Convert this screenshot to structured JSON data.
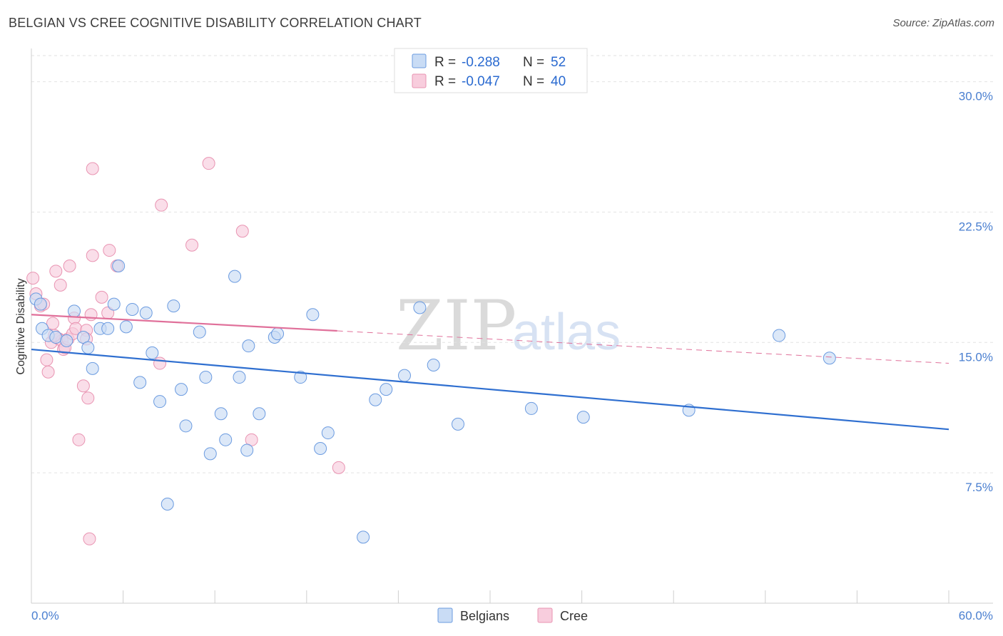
{
  "title": "BELGIAN VS CREE COGNITIVE DISABILITY CORRELATION CHART",
  "source": "Source: ZipAtlas.com",
  "watermark": {
    "zip": "ZIP",
    "atlas": "atlas"
  },
  "colors": {
    "blue": "#4a86d8",
    "blue_fill": "#c9dcf5",
    "pink": "#e97aa0",
    "pink_fill": "#f8cddd",
    "tick": "#4a7fd0"
  },
  "legend": {
    "rows": [
      {
        "r_label": "R =",
        "r_value": "-0.288",
        "n_label": "N =",
        "n_value": "52"
      },
      {
        "r_label": "R =",
        "r_value": "-0.047",
        "n_label": "N =",
        "n_value": "40"
      }
    ]
  },
  "chart_data": {
    "type": "scatter",
    "title": "BELGIAN VS CREE COGNITIVE DISABILITY CORRELATION CHART",
    "xlabel": "",
    "ylabel": "Cognitive Disability",
    "xlim": [
      0,
      60
    ],
    "ylim": [
      0,
      31.5
    ],
    "x_tick_labels": [
      "0.0%",
      "60.0%"
    ],
    "y_ticks": [
      7.5,
      15.0,
      22.5,
      30.0
    ],
    "y_tick_labels": [
      "7.5%",
      "15.0%",
      "22.5%",
      "30.0%"
    ],
    "grid": "horizontal dashed",
    "legend_position": "top-center",
    "series": [
      {
        "name": "Belgians",
        "color": "#4a86d8",
        "trend": {
          "x": [
            0,
            60
          ],
          "y": [
            14.6,
            10.0
          ],
          "dashed_from": null
        },
        "points": [
          [
            0.3,
            17.5
          ],
          [
            0.6,
            17.2
          ],
          [
            0.7,
            15.8
          ],
          [
            1.1,
            15.4
          ],
          [
            1.6,
            15.3
          ],
          [
            2.3,
            15.1
          ],
          [
            2.8,
            16.8
          ],
          [
            3.4,
            15.3
          ],
          [
            3.7,
            14.7
          ],
          [
            4.0,
            13.5
          ],
          [
            4.5,
            15.8
          ],
          [
            5.0,
            15.8
          ],
          [
            5.4,
            17.2
          ],
          [
            5.7,
            19.4
          ],
          [
            6.2,
            15.9
          ],
          [
            6.6,
            16.9
          ],
          [
            7.1,
            12.7
          ],
          [
            7.5,
            16.7
          ],
          [
            7.9,
            14.4
          ],
          [
            8.4,
            11.6
          ],
          [
            8.9,
            5.7
          ],
          [
            9.3,
            17.1
          ],
          [
            9.8,
            12.3
          ],
          [
            10.1,
            10.2
          ],
          [
            11.0,
            15.6
          ],
          [
            11.4,
            13.0
          ],
          [
            11.7,
            8.6
          ],
          [
            12.4,
            10.9
          ],
          [
            12.7,
            9.4
          ],
          [
            13.3,
            18.8
          ],
          [
            13.6,
            13.0
          ],
          [
            14.1,
            8.8
          ],
          [
            14.2,
            14.8
          ],
          [
            14.9,
            10.9
          ],
          [
            15.9,
            15.3
          ],
          [
            16.1,
            15.5
          ],
          [
            17.6,
            13.0
          ],
          [
            18.4,
            16.6
          ],
          [
            18.9,
            8.9
          ],
          [
            19.4,
            9.8
          ],
          [
            21.7,
            3.8
          ],
          [
            22.5,
            11.7
          ],
          [
            23.2,
            12.3
          ],
          [
            24.4,
            13.1
          ],
          [
            25.4,
            17.0
          ],
          [
            26.3,
            13.7
          ],
          [
            27.9,
            10.3
          ],
          [
            32.7,
            11.2
          ],
          [
            36.1,
            10.7
          ],
          [
            43.0,
            11.1
          ],
          [
            48.9,
            15.4
          ],
          [
            52.2,
            14.1
          ]
        ]
      },
      {
        "name": "Cree",
        "color": "#e97aa0",
        "trend": {
          "x": [
            0,
            60
          ],
          "y": [
            16.6,
            13.8
          ],
          "dashed_from": 20
        },
        "points": [
          [
            0.1,
            18.7
          ],
          [
            0.3,
            17.8
          ],
          [
            0.6,
            17.1
          ],
          [
            0.8,
            17.2
          ],
          [
            1.0,
            14.0
          ],
          [
            1.1,
            13.3
          ],
          [
            1.3,
            15.0
          ],
          [
            1.4,
            16.1
          ],
          [
            1.6,
            19.1
          ],
          [
            1.8,
            15.2
          ],
          [
            1.9,
            18.3
          ],
          [
            2.0,
            15.1
          ],
          [
            2.1,
            14.6
          ],
          [
            2.2,
            14.7
          ],
          [
            2.4,
            15.2
          ],
          [
            2.5,
            19.4
          ],
          [
            2.7,
            15.5
          ],
          [
            2.8,
            16.4
          ],
          [
            2.9,
            15.8
          ],
          [
            3.1,
            9.4
          ],
          [
            3.4,
            12.5
          ],
          [
            3.6,
            15.7
          ],
          [
            3.6,
            15.2
          ],
          [
            3.7,
            11.8
          ],
          [
            3.8,
            3.7
          ],
          [
            3.9,
            16.6
          ],
          [
            4.0,
            20.0
          ],
          [
            4.0,
            25.0
          ],
          [
            4.6,
            17.6
          ],
          [
            5.0,
            16.7
          ],
          [
            5.1,
            20.3
          ],
          [
            5.6,
            19.4
          ],
          [
            8.4,
            13.8
          ],
          [
            8.5,
            22.9
          ],
          [
            10.5,
            20.6
          ],
          [
            11.6,
            25.3
          ],
          [
            13.8,
            21.4
          ],
          [
            14.4,
            9.4
          ],
          [
            20.1,
            7.8
          ],
          [
            1.5,
            15.4
          ]
        ]
      }
    ]
  },
  "bottom_legend": [
    "Belgians",
    "Cree"
  ]
}
